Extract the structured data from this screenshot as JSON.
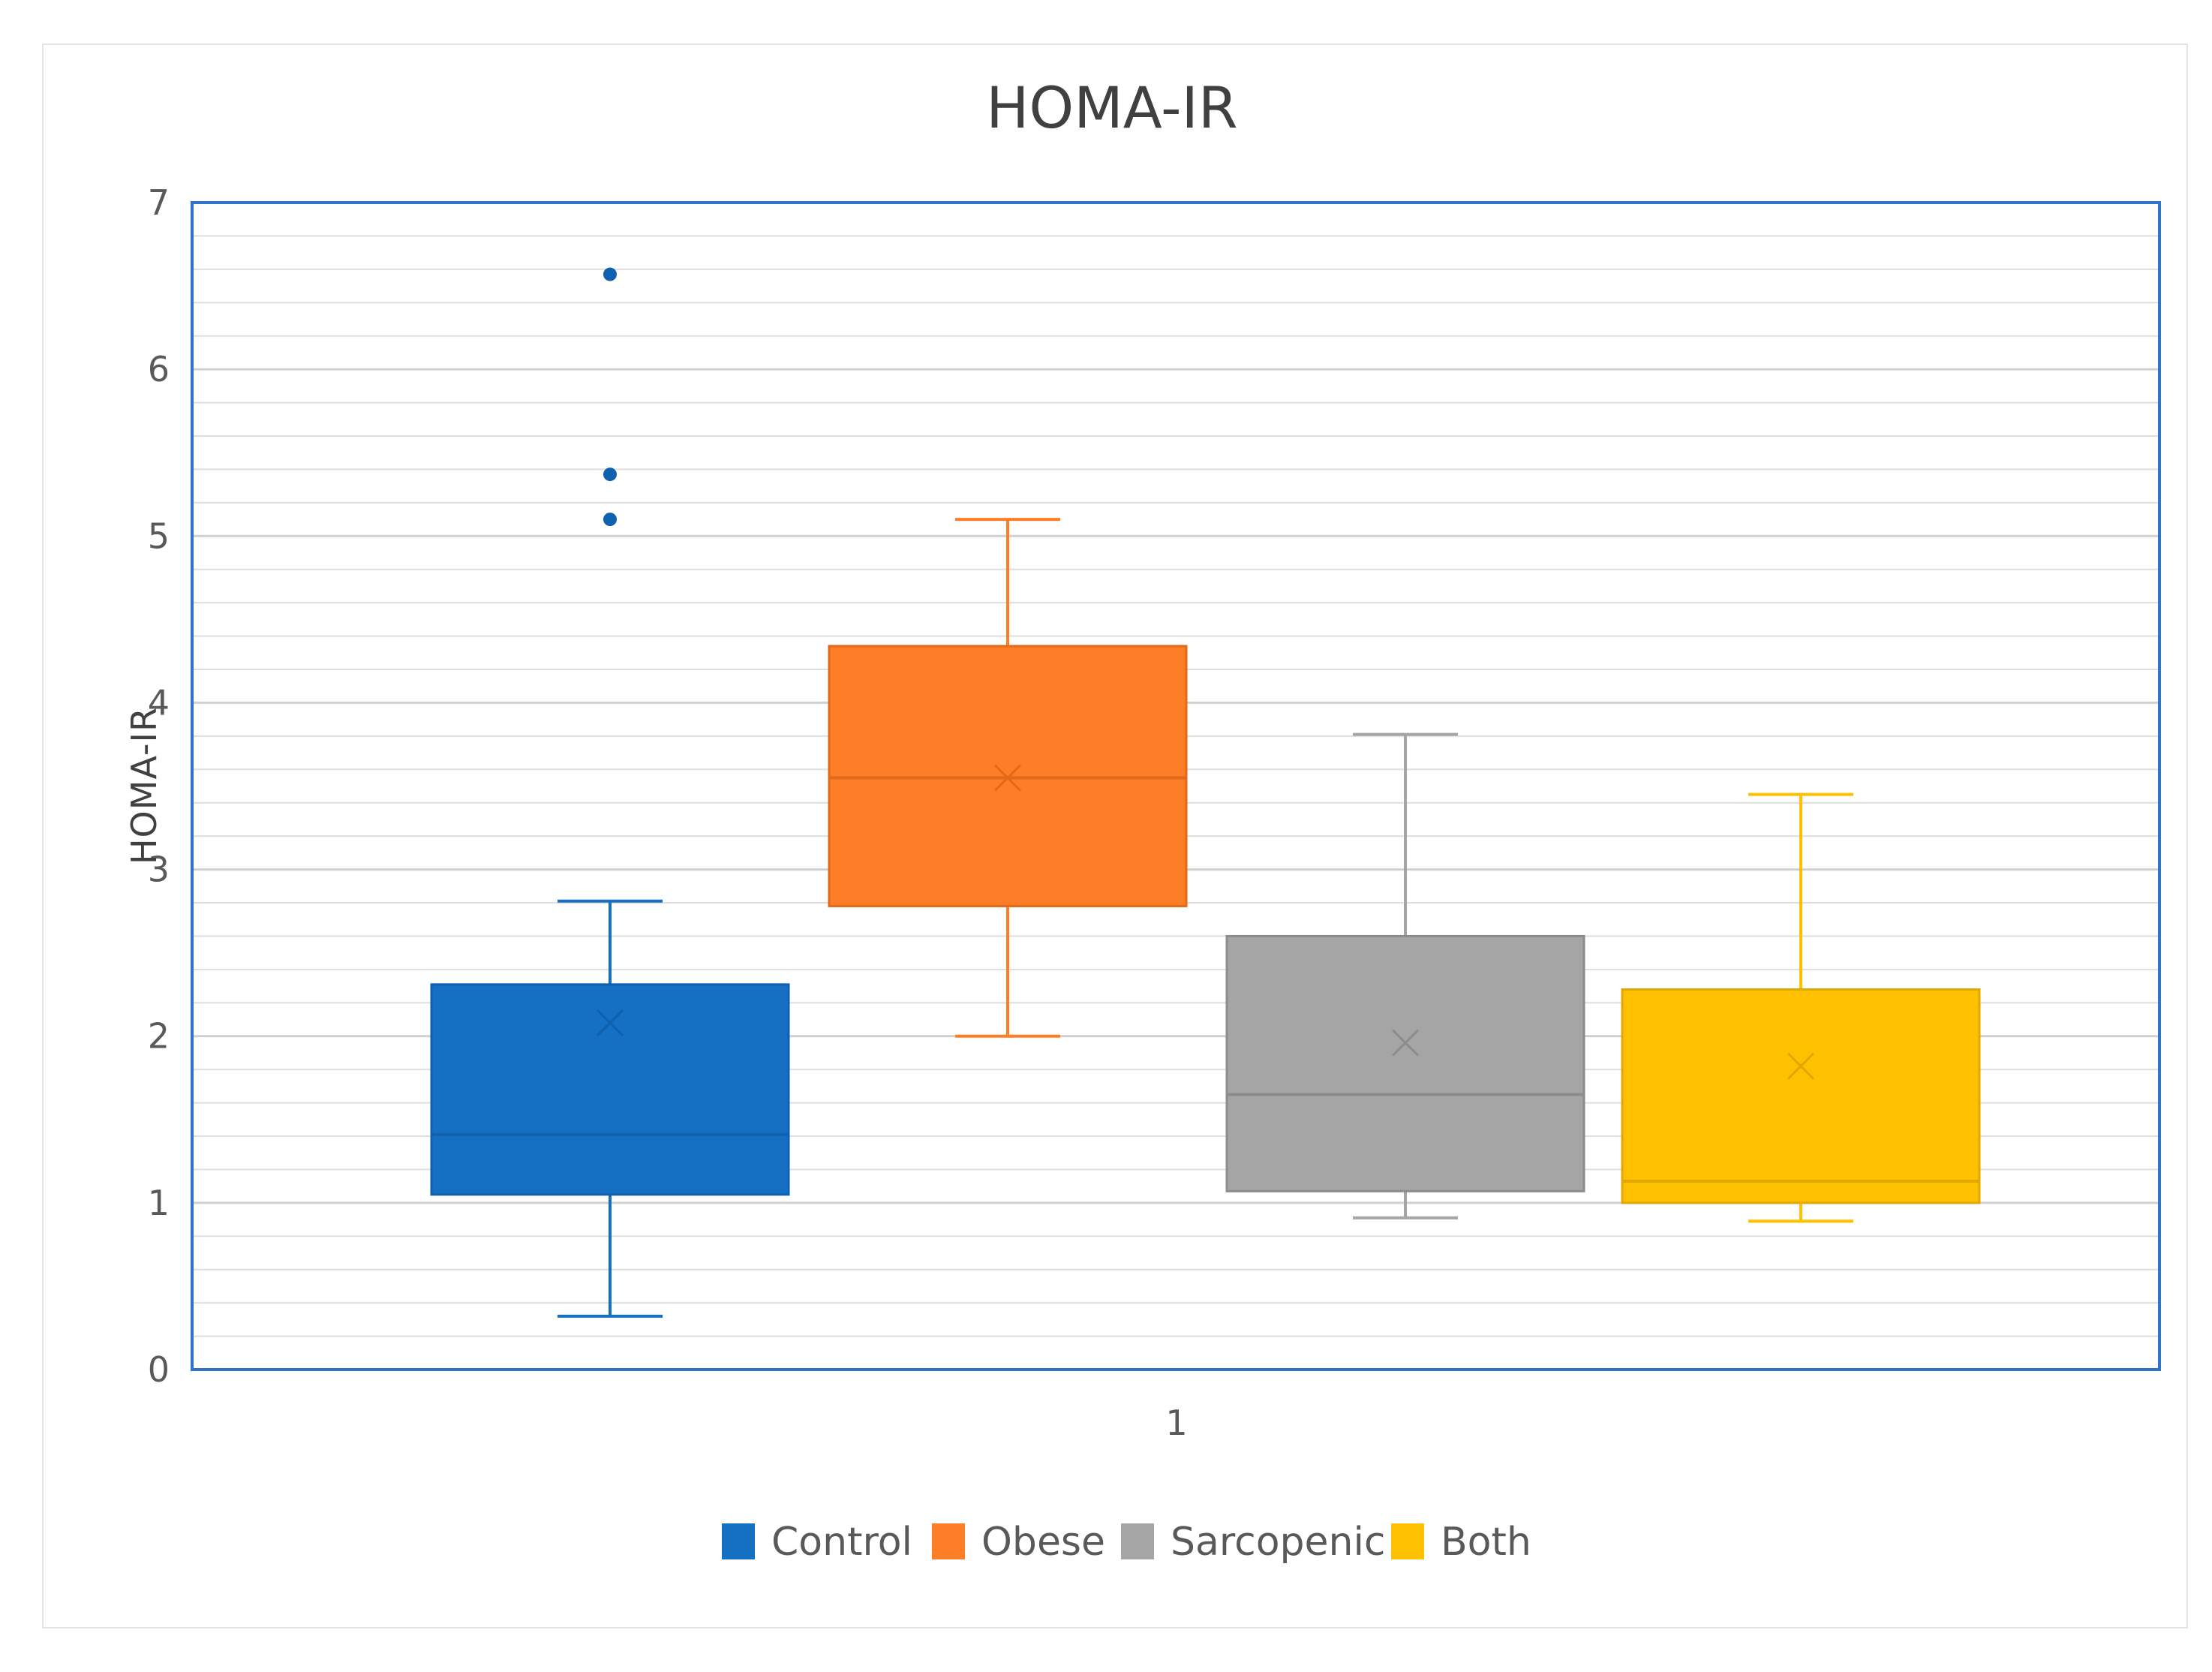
{
  "chart_data": {
    "type": "box",
    "title": "HOMA-IR",
    "ylabel": "HOMA-IR",
    "xlabel": "",
    "x_category": "1",
    "ylim": [
      0,
      7
    ],
    "yticks": [
      0,
      1,
      2,
      3,
      4,
      5,
      6,
      7
    ],
    "minor_gridlines_step": 0.2,
    "legend_position": "bottom",
    "series": [
      {
        "name": "Control",
        "color": "#1570C4",
        "min": 0.32,
        "q1": 1.05,
        "median": 1.41,
        "q3": 2.31,
        "max": 2.81,
        "mean": 2.08,
        "outliers": [
          5.1,
          5.37,
          6.57
        ]
      },
      {
        "name": "Obese",
        "color": "#FD7E27",
        "min": 2.0,
        "q1": 2.78,
        "median": 3.55,
        "q3": 4.34,
        "max": 5.1,
        "mean": 3.55,
        "outliers": []
      },
      {
        "name": "Sarcopenic",
        "color": "#A5A5A5",
        "min": 0.91,
        "q1": 1.07,
        "median": 1.65,
        "q3": 2.6,
        "max": 3.81,
        "mean": 1.96,
        "outliers": []
      },
      {
        "name": "Both",
        "color": "#FFC000",
        "min": 0.89,
        "q1": 1.0,
        "median": 1.13,
        "q3": 2.28,
        "max": 3.45,
        "mean": 1.82,
        "outliers": []
      }
    ]
  }
}
